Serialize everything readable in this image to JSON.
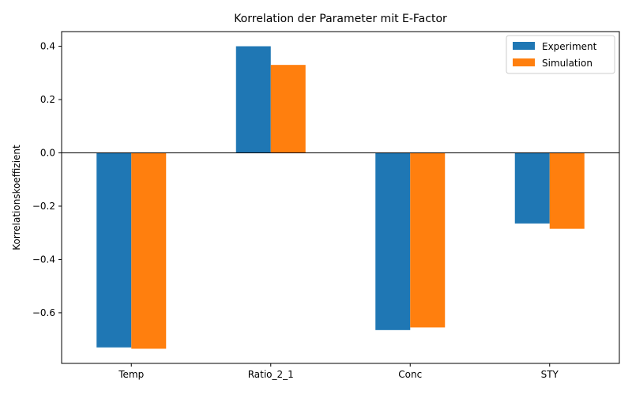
{
  "chart_data": {
    "type": "bar",
    "title": "Korrelation der Parameter mit E-Factor",
    "xlabel": "",
    "ylabel": "Korrelationskoeffizient",
    "categories": [
      "Temp",
      "Ratio_2_1",
      "Conc",
      "STY"
    ],
    "series": [
      {
        "name": "Experiment",
        "values": [
          -0.73,
          0.4,
          -0.665,
          -0.265
        ],
        "color": "#1f77b4"
      },
      {
        "name": "Simulation",
        "values": [
          -0.735,
          0.33,
          -0.655,
          -0.285
        ],
        "color": "#ff7f0e"
      }
    ],
    "ylim": [
      -0.79,
      0.455
    ],
    "yticks": [
      -0.6,
      -0.4,
      -0.2,
      0.0,
      0.2,
      0.4
    ],
    "ytick_labels": [
      "−0.6",
      "−0.4",
      "−0.2",
      "0.0",
      "0.2",
      "0.4"
    ],
    "zero_line": true,
    "grid": false,
    "legend_position": "top-right"
  }
}
